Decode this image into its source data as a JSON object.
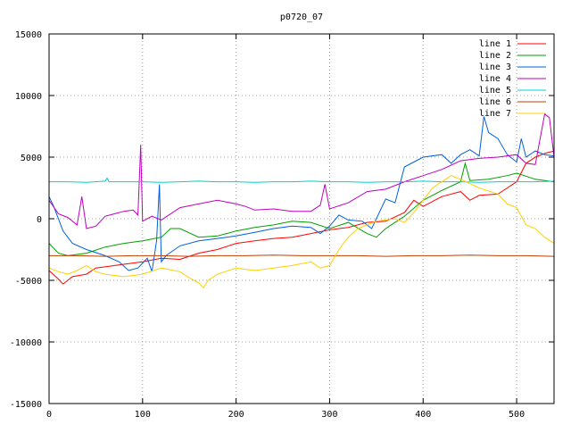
{
  "chart_data": {
    "type": "line",
    "title": "p0720_07",
    "xlabel": "",
    "ylabel": "",
    "xlim": [
      0,
      540
    ],
    "ylim": [
      -15000,
      15000
    ],
    "x_ticks": [
      0,
      100,
      200,
      300,
      400,
      500
    ],
    "y_ticks": [
      -15000,
      -10000,
      -5000,
      0,
      5000,
      10000,
      15000
    ],
    "grid": true,
    "legend_position": "top-right",
    "series": [
      {
        "name": "line 1",
        "color": "#ff0000",
        "points": [
          [
            0,
            -4200
          ],
          [
            10,
            -4900
          ],
          [
            15,
            -5300
          ],
          [
            25,
            -4700
          ],
          [
            40,
            -4500
          ],
          [
            50,
            -4000
          ],
          [
            70,
            -3800
          ],
          [
            100,
            -3500
          ],
          [
            120,
            -3200
          ],
          [
            140,
            -3300
          ],
          [
            160,
            -2800
          ],
          [
            180,
            -2500
          ],
          [
            200,
            -2000
          ],
          [
            220,
            -1800
          ],
          [
            240,
            -1600
          ],
          [
            260,
            -1500
          ],
          [
            280,
            -1200
          ],
          [
            300,
            -900
          ],
          [
            320,
            -700
          ],
          [
            340,
            -300
          ],
          [
            360,
            -200
          ],
          [
            380,
            500
          ],
          [
            390,
            1500
          ],
          [
            400,
            1000
          ],
          [
            420,
            1800
          ],
          [
            440,
            2200
          ],
          [
            450,
            1500
          ],
          [
            460,
            1900
          ],
          [
            480,
            2000
          ],
          [
            490,
            2500
          ],
          [
            500,
            3000
          ],
          [
            510,
            4500
          ],
          [
            520,
            5000
          ],
          [
            530,
            5300
          ],
          [
            540,
            5500
          ]
        ]
      },
      {
        "name": "line 2",
        "color": "#00a000",
        "points": [
          [
            0,
            -2000
          ],
          [
            10,
            -2800
          ],
          [
            20,
            -3000
          ],
          [
            40,
            -2800
          ],
          [
            60,
            -2300
          ],
          [
            80,
            -2000
          ],
          [
            100,
            -1800
          ],
          [
            120,
            -1500
          ],
          [
            130,
            -800
          ],
          [
            140,
            -800
          ],
          [
            160,
            -1500
          ],
          [
            180,
            -1400
          ],
          [
            200,
            -1000
          ],
          [
            220,
            -700
          ],
          [
            240,
            -500
          ],
          [
            260,
            -200
          ],
          [
            280,
            -300
          ],
          [
            300,
            -800
          ],
          [
            320,
            -300
          ],
          [
            340,
            -1200
          ],
          [
            350,
            -1500
          ],
          [
            360,
            -800
          ],
          [
            380,
            200
          ],
          [
            400,
            1500
          ],
          [
            420,
            2300
          ],
          [
            440,
            3000
          ],
          [
            445,
            4500
          ],
          [
            450,
            3100
          ],
          [
            470,
            3200
          ],
          [
            490,
            3500
          ],
          [
            500,
            3700
          ],
          [
            520,
            3200
          ],
          [
            540,
            3000
          ]
        ]
      },
      {
        "name": "line 3",
        "color": "#0060e0",
        "points": [
          [
            0,
            1800
          ],
          [
            5,
            1000
          ],
          [
            15,
            -1000
          ],
          [
            25,
            -2000
          ],
          [
            40,
            -2500
          ],
          [
            60,
            -3000
          ],
          [
            75,
            -3500
          ],
          [
            85,
            -4200
          ],
          [
            95,
            -4000
          ],
          [
            105,
            -3200
          ],
          [
            110,
            -4300
          ],
          [
            115,
            -1800
          ],
          [
            118,
            2800
          ],
          [
            120,
            -3500
          ],
          [
            125,
            -3000
          ],
          [
            140,
            -2200
          ],
          [
            160,
            -1800
          ],
          [
            180,
            -1600
          ],
          [
            200,
            -1400
          ],
          [
            220,
            -1100
          ],
          [
            240,
            -800
          ],
          [
            260,
            -600
          ],
          [
            280,
            -700
          ],
          [
            290,
            -1200
          ],
          [
            300,
            -600
          ],
          [
            310,
            300
          ],
          [
            320,
            -100
          ],
          [
            335,
            -200
          ],
          [
            345,
            -800
          ],
          [
            360,
            1600
          ],
          [
            370,
            1300
          ],
          [
            380,
            4200
          ],
          [
            390,
            4600
          ],
          [
            400,
            5000
          ],
          [
            420,
            5200
          ],
          [
            430,
            4500
          ],
          [
            440,
            5200
          ],
          [
            450,
            5600
          ],
          [
            460,
            5100
          ],
          [
            465,
            8300
          ],
          [
            470,
            7000
          ],
          [
            480,
            6500
          ],
          [
            490,
            5200
          ],
          [
            500,
            4600
          ],
          [
            505,
            6500
          ],
          [
            510,
            5000
          ],
          [
            520,
            5500
          ],
          [
            530,
            5200
          ],
          [
            540,
            5100
          ]
        ]
      },
      {
        "name": "line 4",
        "color": "#c000c0",
        "points": [
          [
            0,
            1500
          ],
          [
            10,
            400
          ],
          [
            20,
            100
          ],
          [
            30,
            -500
          ],
          [
            35,
            1800
          ],
          [
            40,
            -800
          ],
          [
            50,
            -600
          ],
          [
            60,
            200
          ],
          [
            80,
            600
          ],
          [
            90,
            700
          ],
          [
            95,
            300
          ],
          [
            98,
            6000
          ],
          [
            100,
            -200
          ],
          [
            110,
            200
          ],
          [
            120,
            -100
          ],
          [
            140,
            900
          ],
          [
            160,
            1200
          ],
          [
            180,
            1500
          ],
          [
            200,
            1200
          ],
          [
            210,
            1000
          ],
          [
            220,
            700
          ],
          [
            240,
            800
          ],
          [
            260,
            600
          ],
          [
            280,
            600
          ],
          [
            290,
            1100
          ],
          [
            295,
            2800
          ],
          [
            300,
            800
          ],
          [
            320,
            1300
          ],
          [
            340,
            2200
          ],
          [
            360,
            2400
          ],
          [
            380,
            3000
          ],
          [
            400,
            3500
          ],
          [
            420,
            4000
          ],
          [
            440,
            4700
          ],
          [
            460,
            4900
          ],
          [
            480,
            5000
          ],
          [
            500,
            5200
          ],
          [
            510,
            4500
          ],
          [
            520,
            4400
          ],
          [
            530,
            8500
          ],
          [
            535,
            8200
          ],
          [
            540,
            5000
          ]
        ]
      },
      {
        "name": "line 5",
        "color": "#00d0d0",
        "points": [
          [
            0,
            3000
          ],
          [
            20,
            3000
          ],
          [
            40,
            2950
          ],
          [
            60,
            3050
          ],
          [
            62,
            3300
          ],
          [
            64,
            3000
          ],
          [
            80,
            3000
          ],
          [
            100,
            3000
          ],
          [
            120,
            2950
          ],
          [
            140,
            3000
          ],
          [
            160,
            3050
          ],
          [
            180,
            3000
          ],
          [
            200,
            3000
          ],
          [
            220,
            2950
          ],
          [
            240,
            3000
          ],
          [
            260,
            3000
          ],
          [
            280,
            3050
          ],
          [
            300,
            3000
          ],
          [
            320,
            3000
          ],
          [
            340,
            2950
          ],
          [
            360,
            3000
          ],
          [
            380,
            3000
          ],
          [
            400,
            3050
          ],
          [
            420,
            3000
          ],
          [
            440,
            3000
          ],
          [
            460,
            2950
          ],
          [
            480,
            3000
          ],
          [
            500,
            3000
          ],
          [
            520,
            3000
          ],
          [
            540,
            3050
          ]
        ]
      },
      {
        "name": "line 6",
        "color": "#c04000",
        "points": [
          [
            0,
            -3000
          ],
          [
            30,
            -3000
          ],
          [
            60,
            -3050
          ],
          [
            90,
            -3000
          ],
          [
            120,
            -3000
          ],
          [
            150,
            -3050
          ],
          [
            180,
            -3000
          ],
          [
            210,
            -3000
          ],
          [
            240,
            -2950
          ],
          [
            270,
            -3000
          ],
          [
            300,
            -3000
          ],
          [
            330,
            -3000
          ],
          [
            360,
            -3050
          ],
          [
            390,
            -3000
          ],
          [
            420,
            -3000
          ],
          [
            450,
            -2950
          ],
          [
            480,
            -3000
          ],
          [
            510,
            -3000
          ],
          [
            540,
            -3050
          ]
        ]
      },
      {
        "name": "line 7",
        "color": "#ffd000",
        "points": [
          [
            0,
            -4000
          ],
          [
            10,
            -4300
          ],
          [
            20,
            -4500
          ],
          [
            30,
            -4200
          ],
          [
            40,
            -3800
          ],
          [
            50,
            -4300
          ],
          [
            60,
            -4500
          ],
          [
            80,
            -4700
          ],
          [
            100,
            -4500
          ],
          [
            120,
            -4000
          ],
          [
            140,
            -4300
          ],
          [
            150,
            -4800
          ],
          [
            160,
            -5200
          ],
          [
            165,
            -5600
          ],
          [
            170,
            -5000
          ],
          [
            180,
            -4500
          ],
          [
            200,
            -4000
          ],
          [
            220,
            -4200
          ],
          [
            240,
            -4000
          ],
          [
            260,
            -3800
          ],
          [
            280,
            -3500
          ],
          [
            290,
            -4000
          ],
          [
            300,
            -3800
          ],
          [
            310,
            -2500
          ],
          [
            320,
            -1500
          ],
          [
            330,
            -800
          ],
          [
            340,
            -500
          ],
          [
            350,
            -200
          ],
          [
            360,
            -100
          ],
          [
            370,
            0
          ],
          [
            380,
            -300
          ],
          [
            390,
            500
          ],
          [
            400,
            1500
          ],
          [
            410,
            2500
          ],
          [
            420,
            3000
          ],
          [
            430,
            3500
          ],
          [
            440,
            3200
          ],
          [
            460,
            2500
          ],
          [
            480,
            2000
          ],
          [
            490,
            1200
          ],
          [
            500,
            900
          ],
          [
            510,
            -500
          ],
          [
            520,
            -800
          ],
          [
            530,
            -1500
          ],
          [
            540,
            -2000
          ]
        ]
      }
    ]
  }
}
